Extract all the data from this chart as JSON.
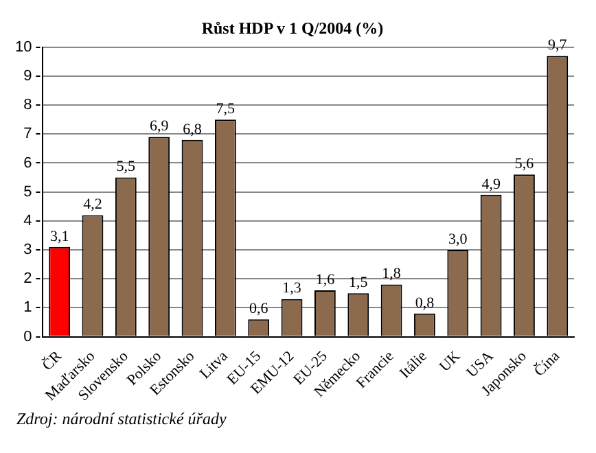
{
  "chart_data": {
    "type": "bar",
    "title": "Růst HDP v 1 Q/2004 (%)",
    "categories": [
      "ČR",
      "Maďarsko",
      "Slovensko",
      "Polsko",
      "Estonsko",
      "Litva",
      "EU-15",
      "EMU-12",
      "EU-25",
      "Německo",
      "Francie",
      "Itálie",
      "UK",
      "USA",
      "Japonsko",
      "Čína"
    ],
    "values": [
      3.1,
      4.2,
      5.5,
      6.9,
      6.8,
      7.5,
      0.6,
      1.3,
      1.6,
      1.5,
      1.8,
      0.8,
      3.0,
      4.9,
      5.6,
      9.7
    ],
    "value_labels": [
      "3,1",
      "4,2",
      "5,5",
      "6,9",
      "6,8",
      "7,5",
      "0,6",
      "1,3",
      "1,6",
      "1,5",
      "1,8",
      "0,8",
      "3,0",
      "4,9",
      "5,6",
      "9,7"
    ],
    "colors": [
      "#ff0000",
      "#8c6a4e",
      "#8c6a4e",
      "#8c6a4e",
      "#8c6a4e",
      "#8c6a4e",
      "#8c6a4e",
      "#8c6a4e",
      "#8c6a4e",
      "#8c6a4e",
      "#8c6a4e",
      "#8c6a4e",
      "#8c6a4e",
      "#8c6a4e",
      "#8c6a4e",
      "#8c6a4e"
    ],
    "ylim": [
      0,
      10
    ],
    "yticks": [
      0,
      1,
      2,
      3,
      4,
      5,
      6,
      7,
      8,
      9,
      10
    ],
    "grid": "y",
    "legend": false,
    "annotations": [
      "Zdroj: národní statistické úřady"
    ]
  }
}
